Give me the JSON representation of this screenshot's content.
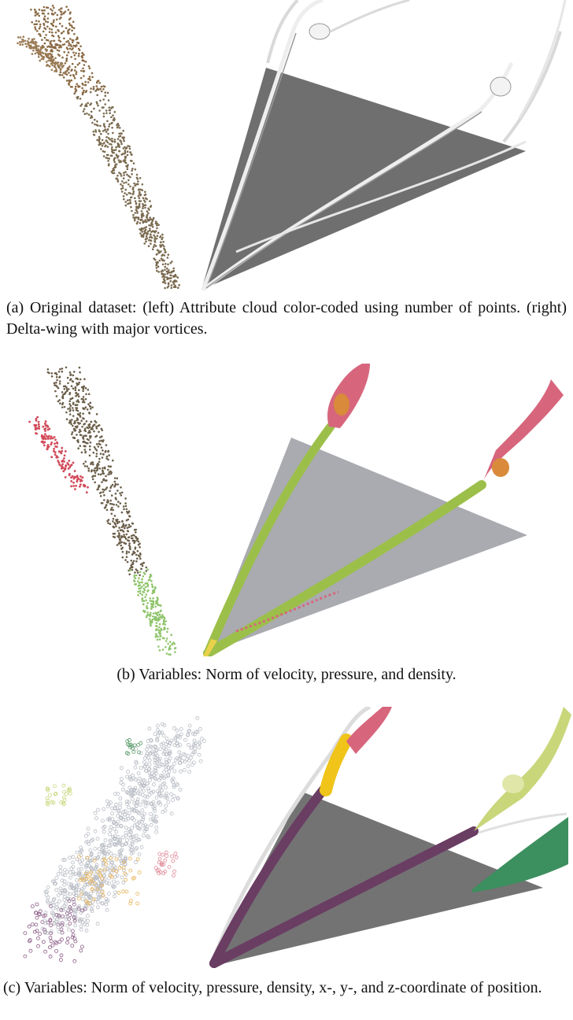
{
  "figure": {
    "panels": [
      {
        "id": "a",
        "caption": "(a)  Original dataset: (left) Attribute cloud color-coded using number of points. (right) Delta-wing with major vortices."
      },
      {
        "id": "b",
        "caption": "(b)  Variables: Norm of velocity, pressure, and density."
      },
      {
        "id": "c",
        "caption": "(c)  Variables: Norm of velocity, pressure, density, x-, y-, and z-coordinate of position."
      }
    ],
    "colors": {
      "wing_dark": "#6f6f6f",
      "wing_light": "#a9abb0",
      "vortex_white": "#f2f2f2",
      "vortex_green": "#9cbf4a",
      "vortex_pink": "#d7667d",
      "vortex_orange": "#d98a3a",
      "vortex_purple": "#6a3d63",
      "vortex_yellow": "#f0c419",
      "vortex_lime": "#c9d67a",
      "vortex_teal": "#3c8f5e",
      "points_brown": "#7a6a4f",
      "points_red": "#d14a5a",
      "points_green": "#8fc46b",
      "points_gray": "#b8bcc4"
    }
  }
}
